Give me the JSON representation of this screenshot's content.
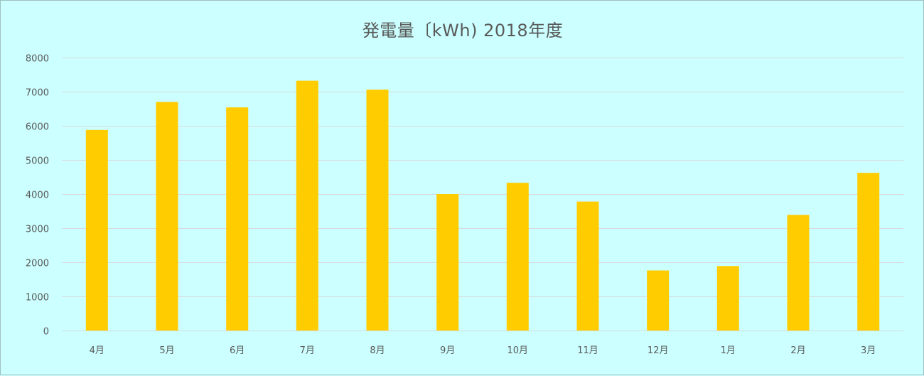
{
  "chart_data": {
    "type": "bar",
    "title": "発電量〔kWh) 2018年度",
    "xlabel": "",
    "ylabel": "",
    "categories": [
      "4月",
      "5月",
      "6月",
      "7月",
      "8月",
      "9月",
      "10月",
      "11月",
      "12月",
      "1月",
      "2月",
      "3月"
    ],
    "values": [
      5880,
      6700,
      6540,
      7320,
      7060,
      4000,
      4330,
      3780,
      1760,
      1890,
      3390,
      4620
    ],
    "ylim": [
      0,
      8000
    ],
    "yticks": [
      0,
      1000,
      2000,
      3000,
      4000,
      5000,
      6000,
      7000,
      8000
    ],
    "grid": true,
    "legend": "none",
    "bar_color": "#ffcc00",
    "grid_color": "#d9d9d9",
    "background_color": "#ccffff"
  }
}
